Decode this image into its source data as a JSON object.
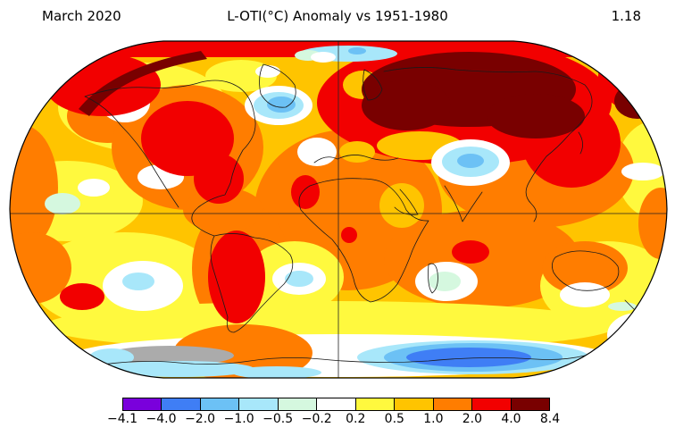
{
  "figure": {
    "date_label": "March 2020",
    "title": "L-OTI(°C) Anomaly vs 1951-1980",
    "global_mean": "1.18"
  },
  "chart_data": {
    "type": "heatmap",
    "subtype": "global-temperature-anomaly-map",
    "projection": "robinson",
    "period": "March 2020",
    "baseline": "1951-1980",
    "units": "°C",
    "global_mean_anomaly_c": 1.18,
    "colorbar": {
      "position": "bottom",
      "levels": [
        -4.1,
        -4.0,
        -2.0,
        -1.0,
        -0.5,
        -0.2,
        0.2,
        0.5,
        1.0,
        2.0,
        4.0,
        8.4
      ],
      "tick_labels": [
        "−4.1",
        "−4.0",
        "−2.0",
        "−1.0",
        "−0.5",
        "−0.2",
        "0.2",
        "0.5",
        "1.0",
        "2.0",
        "4.0",
        "8.4"
      ],
      "colors": [
        "#7A00DC",
        "#3F7EF5",
        "#6CC1F5",
        "#A8E7FA",
        "#D5F8DF",
        "#FFFFFF",
        "#FFF93E",
        "#FFC400",
        "#FF7D00",
        "#F20000",
        "#790000"
      ],
      "no_data_color": "#ABABAB"
    },
    "palette": {
      "purple": "#7A00DC",
      "blue": "#3F7EF5",
      "lightblue": "#6CC1F5",
      "palecyan": "#A8E7FA",
      "mint": "#D5F8DF",
      "white": "#FFFFFF",
      "yellow": "#FFF93E",
      "amber": "#FFC400",
      "orange": "#FF7D00",
      "red": "#F20000",
      "maroon": "#790000",
      "gray": "#ABABAB",
      "coast": "#1A1A1A",
      "grid": "#222222",
      "outline": "#000000"
    },
    "regions": [
      {
        "region": "Siberia / northern Russia",
        "anomaly": "4 to 8.4 (dark red, warmest)"
      },
      {
        "region": "Arctic rim / Alaska north coast",
        "anomaly": "2 to 4"
      },
      {
        "region": "Central & eastern North America",
        "anomaly": "2 to 4"
      },
      {
        "region": "Southern South America (Argentina)",
        "anomaly": "2 to 4"
      },
      {
        "region": "Europe & central Asia",
        "anomaly": "1 to 4"
      },
      {
        "region": "Africa, tropical oceans, Australia",
        "anomaly": "0.5 to 2"
      },
      {
        "region": "Northern India / Himalaya",
        "anomaly": "-1 to -0.5 (cool)"
      },
      {
        "region": "Greenland / Labrador Sea",
        "anomaly": "-1 to -0.5 (cool)"
      },
      {
        "region": "East Antarctica coast",
        "anomaly": "-2 to -1 (cool)"
      },
      {
        "region": "West Antarctica",
        "anomaly": "no data (gray)"
      },
      {
        "region": "Southern Ocean band",
        "anomaly": "-0.2 to 0.5"
      }
    ]
  }
}
